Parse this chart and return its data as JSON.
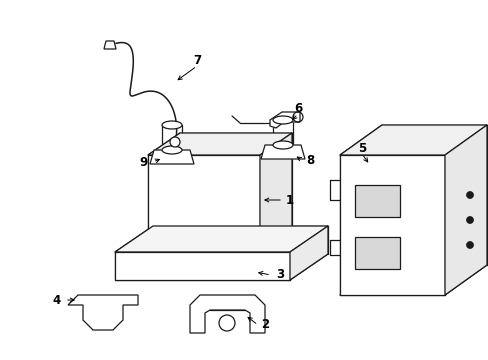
{
  "bg_color": "#ffffff",
  "line_color": "#1a1a1a",
  "figure_width": 4.89,
  "figure_height": 3.6,
  "dpi": 100,
  "lw": 0.9,
  "label_fontsize": 8.5
}
